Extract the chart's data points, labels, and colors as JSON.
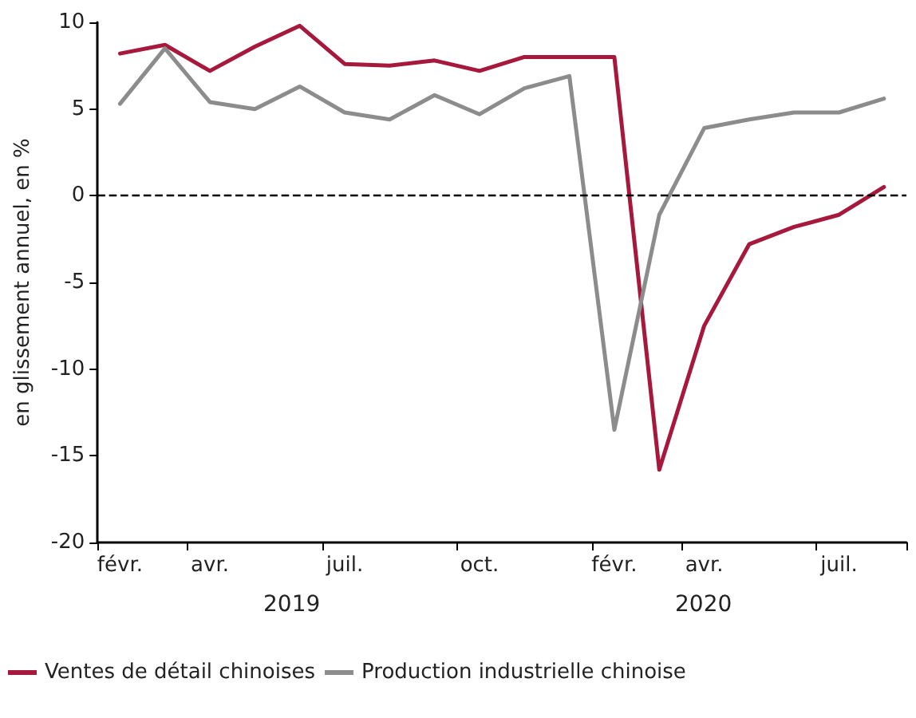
{
  "chart_data": {
    "type": "line",
    "ylabel": "en glissement annuel, en %",
    "categories": [
      "févr.",
      null,
      "avr.",
      null,
      null,
      "juil.",
      null,
      null,
      "oct.",
      null,
      null,
      "févr.",
      null,
      "avr.",
      null,
      null,
      "juil.",
      null
    ],
    "series": [
      {
        "name": "Ventes de détail chinoises",
        "color": "#a6193c",
        "values": [
          8.2,
          8.7,
          7.2,
          8.6,
          9.8,
          7.6,
          7.5,
          7.8,
          7.2,
          8.0,
          8.0,
          8.0,
          -15.8,
          -7.5,
          -2.8,
          -1.8,
          -1.1,
          0.5
        ]
      },
      {
        "name": "Production industrielle chinoise",
        "color": "#8c8c8c",
        "values": [
          5.3,
          8.5,
          5.4,
          5.0,
          6.3,
          4.8,
          4.4,
          5.8,
          4.7,
          6.2,
          6.9,
          -13.5,
          -1.1,
          3.9,
          4.4,
          4.8,
          4.8,
          5.6
        ]
      }
    ],
    "ylim": [
      -20,
      10
    ],
    "yticks": [
      -20,
      -15,
      -10,
      -5,
      0,
      5,
      10
    ],
    "ref_lines": [
      {
        "axis": "y",
        "value": 0,
        "color": "#000000",
        "line_style": "dashed"
      }
    ],
    "annotations": [
      "2019",
      "2020"
    ],
    "grid": false,
    "legend": "bottom left",
    "marker": "none",
    "line_style": "solid"
  }
}
